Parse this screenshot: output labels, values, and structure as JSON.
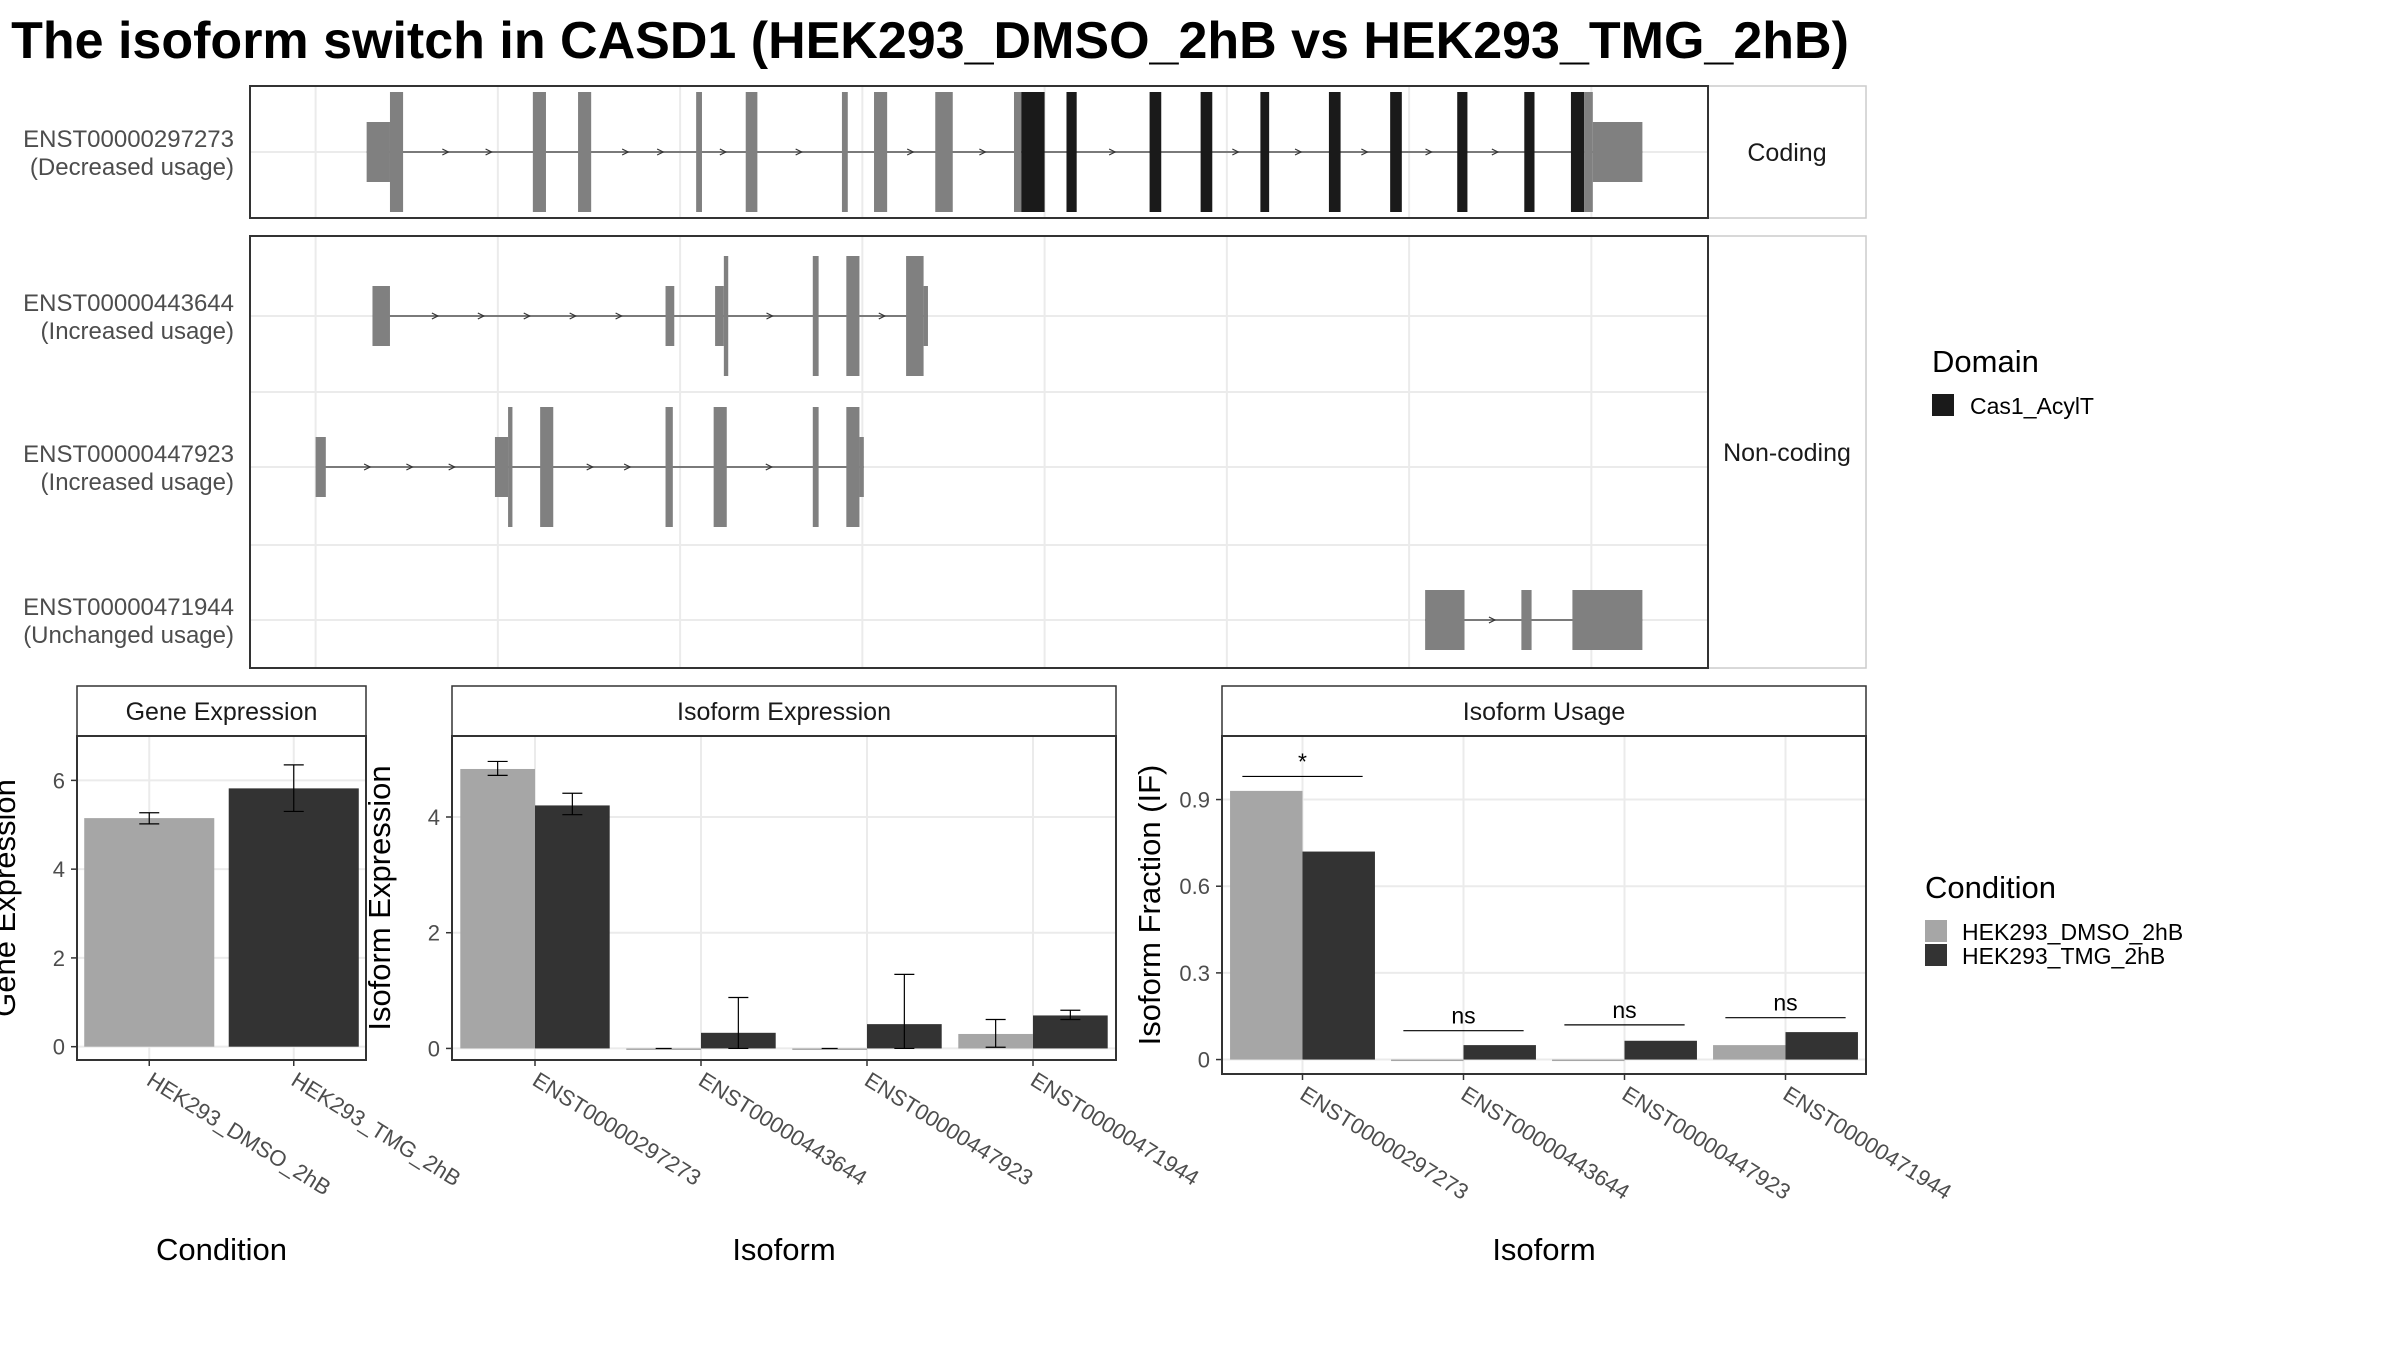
{
  "title": "The isoform switch in CASD1 (HEK293_DMSO_2hB vs HEK293_TMG_2hB)",
  "colors": {
    "exon": "#808080",
    "domain": "#1a1a1a",
    "dmso": "#a6a6a6",
    "tmg": "#333333",
    "grid": "#ebebeb",
    "panel_border": "#333333"
  },
  "isoform_plot": {
    "groups": [
      "Coding",
      "Non-coding"
    ],
    "transcripts": [
      {
        "id": "ENST00000297273",
        "usage": "(Decreased usage)",
        "group": "Coding",
        "exons": [
          [
            0.08,
            0.096,
            "utr"
          ],
          [
            0.096,
            0.105,
            "cds"
          ],
          [
            0.194,
            0.203,
            "cds"
          ],
          [
            0.225,
            0.234,
            "cds"
          ],
          [
            0.306,
            0.31,
            "cds"
          ],
          [
            0.34,
            0.348,
            "cds"
          ],
          [
            0.406,
            0.41,
            "cds"
          ],
          [
            0.428,
            0.437,
            "cds"
          ],
          [
            0.47,
            0.482,
            "cds"
          ],
          [
            0.524,
            0.529,
            "cds"
          ],
          [
            0.529,
            0.545,
            "domain"
          ],
          [
            0.56,
            0.567,
            "domain"
          ],
          [
            0.617,
            0.625,
            "domain"
          ],
          [
            0.652,
            0.66,
            "domain"
          ],
          [
            0.693,
            0.699,
            "domain"
          ],
          [
            0.74,
            0.748,
            "domain"
          ],
          [
            0.782,
            0.79,
            "domain"
          ],
          [
            0.828,
            0.835,
            "domain"
          ],
          [
            0.874,
            0.881,
            "domain"
          ],
          [
            0.906,
            0.915,
            "domain"
          ],
          [
            0.915,
            0.921,
            "cds"
          ],
          [
            0.921,
            0.955,
            "utr"
          ]
        ]
      },
      {
        "id": "ENST00000443644",
        "usage": "(Increased usage)",
        "group": "Non-coding",
        "exons": [
          [
            0.084,
            0.096,
            "utr"
          ],
          [
            0.285,
            0.291,
            "utr"
          ],
          [
            0.319,
            0.325,
            "utr"
          ],
          [
            0.325,
            0.328,
            "cds"
          ],
          [
            0.386,
            0.39,
            "cds"
          ],
          [
            0.409,
            0.418,
            "cds"
          ],
          [
            0.45,
            0.462,
            "cds"
          ],
          [
            0.462,
            0.465,
            "utr"
          ]
        ]
      },
      {
        "id": "ENST00000447923",
        "usage": "(Increased usage)",
        "group": "Non-coding",
        "exons": [
          [
            0.045,
            0.052,
            "utr"
          ],
          [
            0.168,
            0.177,
            "utr"
          ],
          [
            0.177,
            0.18,
            "cds"
          ],
          [
            0.199,
            0.208,
            "cds"
          ],
          [
            0.285,
            0.29,
            "cds"
          ],
          [
            0.318,
            0.327,
            "cds"
          ],
          [
            0.386,
            0.39,
            "cds"
          ],
          [
            0.409,
            0.418,
            "cds"
          ],
          [
            0.418,
            0.421,
            "utr"
          ]
        ]
      },
      {
        "id": "ENST00000471944",
        "usage": "(Unchanged usage)",
        "group": "Non-coding",
        "exons": [
          [
            0.806,
            0.833,
            "utr"
          ],
          [
            0.872,
            0.879,
            "utr"
          ],
          [
            0.907,
            0.955,
            "utr"
          ]
        ]
      }
    ]
  },
  "legend_domain": {
    "title": "Domain",
    "items": [
      {
        "label": "Cas1_AcylT",
        "color": "#1a1a1a"
      }
    ]
  },
  "legend_condition": {
    "title": "Condition",
    "items": [
      {
        "label": "HEK293_DMSO_2hB",
        "color": "#a6a6a6"
      },
      {
        "label": "HEK293_TMG_2hB",
        "color": "#333333"
      }
    ]
  },
  "chart_data": [
    {
      "type": "bar",
      "title": "Gene Expression",
      "xlabel": "Condition",
      "ylabel": "Gene Expression",
      "ylim": [
        -0.3,
        7.0
      ],
      "yticks": [
        0,
        2,
        4,
        6
      ],
      "categories": [
        "HEK293_DMSO_2hB",
        "HEK293_TMG_2hB"
      ],
      "values": [
        5.15,
        5.82
      ],
      "errors": [
        [
          5.02,
          5.27
        ],
        [
          5.3,
          6.35
        ]
      ]
    },
    {
      "type": "bar",
      "title": "Isoform Expression",
      "xlabel": "Isoform",
      "ylabel": "Isoform Expression",
      "ylim": [
        -0.2,
        5.4
      ],
      "yticks": [
        0,
        2,
        4
      ],
      "categories": [
        "ENST00000297273",
        "ENST00000443644",
        "ENST00000447923",
        "ENST00000471944"
      ],
      "series": [
        {
          "name": "HEK293_DMSO_2hB",
          "values": [
            4.83,
            0.0,
            0.0,
            0.25
          ],
          "errors": [
            [
              4.72,
              4.96
            ],
            [
              0.0,
              0.0
            ],
            [
              0.0,
              0.0
            ],
            [
              0.02,
              0.5
            ]
          ]
        },
        {
          "name": "HEK293_TMG_2hB",
          "values": [
            4.2,
            0.27,
            0.42,
            0.57
          ],
          "errors": [
            [
              4.04,
              4.41
            ],
            [
              0.0,
              0.88
            ],
            [
              0.0,
              1.28
            ],
            [
              0.5,
              0.66
            ]
          ]
        }
      ]
    },
    {
      "type": "bar",
      "title": "Isoform Usage",
      "xlabel": "Isoform",
      "ylabel": "Isoform Fraction (IF)",
      "ylim": [
        -0.05,
        1.12
      ],
      "yticks": [
        0.0,
        0.3,
        0.6,
        0.9
      ],
      "categories": [
        "ENST00000297273",
        "ENST00000443644",
        "ENST00000447923",
        "ENST00000471944"
      ],
      "series": [
        {
          "name": "HEK293_DMSO_2hB",
          "values": [
            0.93,
            0.0,
            0.0,
            0.05
          ]
        },
        {
          "name": "HEK293_TMG_2hB",
          "values": [
            0.72,
            0.05,
            0.065,
            0.095
          ]
        }
      ],
      "significance": [
        {
          "label": "*",
          "y": 0.98
        },
        {
          "label": "ns",
          "y": 0.1
        },
        {
          "label": "ns",
          "y": 0.12
        },
        {
          "label": "ns",
          "y": 0.145
        }
      ]
    }
  ]
}
